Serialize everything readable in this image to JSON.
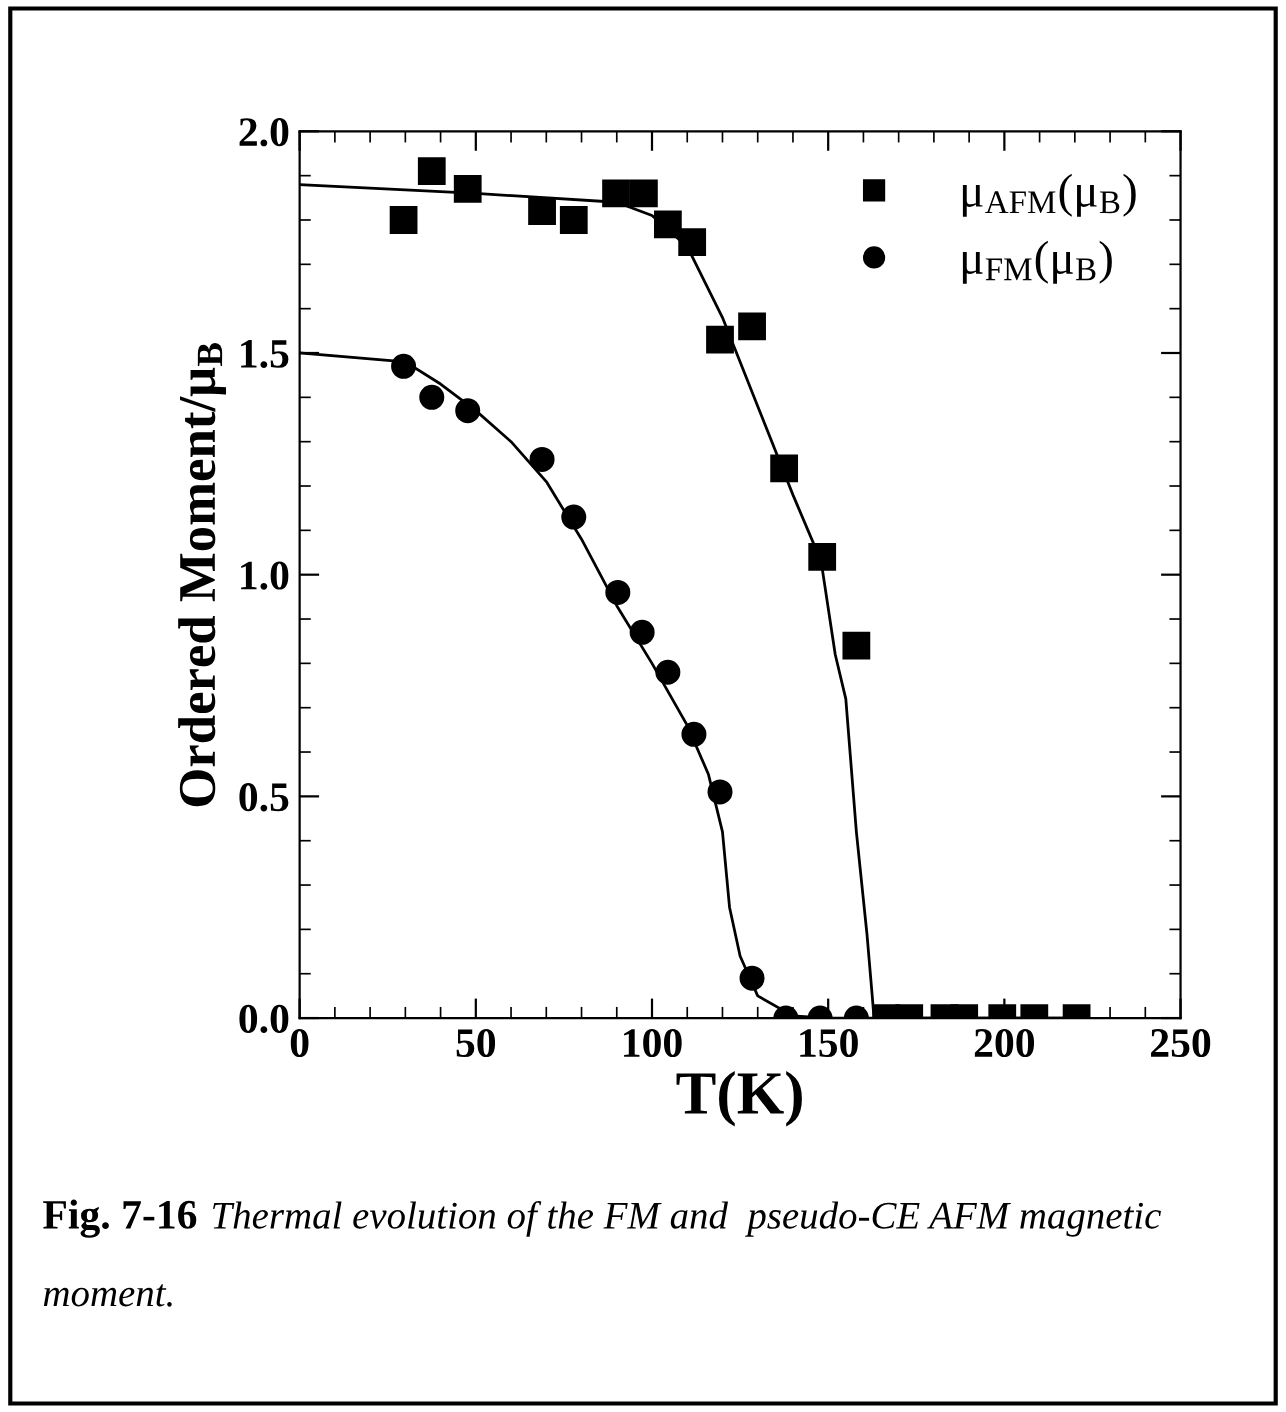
{
  "chart_data": {
    "type": "scatter",
    "ylabel": "Ordered Moment/μ$_{B}$",
    "xlabel": "T(K)",
    "xlim": [
      0,
      250
    ],
    "xticks": [
      0,
      50,
      100,
      150,
      200,
      250
    ],
    "ylim": [
      0,
      2.0
    ],
    "yticks": [
      {
        "value": 0,
        "label": "0.0"
      },
      0.5,
      {
        "value": 1,
        "label": "1.0"
      },
      1.5,
      {
        "value": 2,
        "label": "2.0"
      }
    ],
    "legend": "top right",
    "grid": false,
    "annotations": [
      "Fig. 7-16",
      "Thermal evolution of the FM and  pseudo-CE AFM magnetic moment."
    ],
    "series": [
      {
        "name": "μ$_{AFM}$(μ$_{B}$)",
        "marker": "square",
        "color": "#000000",
        "x": [
          29.5,
          37.5,
          47.7,
          68.8,
          77.8,
          89.8,
          97.7,
          104.5,
          111.4,
          119.3,
          128.4,
          137.5,
          148.3,
          158,
          166.5,
          173,
          183,
          188.6,
          199.4,
          208.5,
          220.5
        ],
        "values": [
          1.8,
          1.91,
          1.87,
          1.82,
          1.8,
          1.86,
          1.86,
          1.79,
          1.75,
          1.53,
          1.56,
          1.24,
          1.04,
          0.84,
          0,
          0,
          0,
          0,
          0,
          0,
          0
        ]
      },
      {
        "name": "μ$_{FM}$(μ$_{B}$)",
        "marker": "circle",
        "color": "#000000",
        "x": [
          29.5,
          37.5,
          47.7,
          68.8,
          77.8,
          90.3,
          97.2,
          104.5,
          111.9,
          119.3,
          128.4,
          138,
          147.7,
          158
        ],
        "values": [
          1.47,
          1.4,
          1.37,
          1.26,
          1.13,
          0.96,
          0.87,
          0.78,
          0.64,
          0.51,
          0.09,
          0,
          0,
          0
        ]
      },
      {
        "type": "line",
        "color": "#000000",
        "x": [
          0,
          50,
          90,
          100,
          110,
          120,
          130,
          140,
          148,
          152,
          155,
          158,
          161,
          162.5,
          163,
          220
        ],
        "values": [
          1.88,
          1.86,
          1.84,
          1.81,
          1.74,
          1.58,
          1.38,
          1.18,
          1.03,
          0.82,
          0.72,
          0.42,
          0.19,
          0.05,
          0,
          0
        ]
      },
      {
        "type": "line",
        "color": "#000000",
        "x": [
          0,
          30,
          40,
          50,
          60,
          70,
          80,
          90,
          100,
          110,
          116,
          120,
          122,
          125,
          130,
          140,
          150,
          220
        ],
        "values": [
          1.5,
          1.48,
          1.43,
          1.37,
          1.3,
          1.21,
          1.08,
          0.93,
          0.8,
          0.66,
          0.55,
          0.42,
          0.25,
          0.14,
          0.05,
          0.005,
          0,
          0
        ]
      }
    ]
  }
}
